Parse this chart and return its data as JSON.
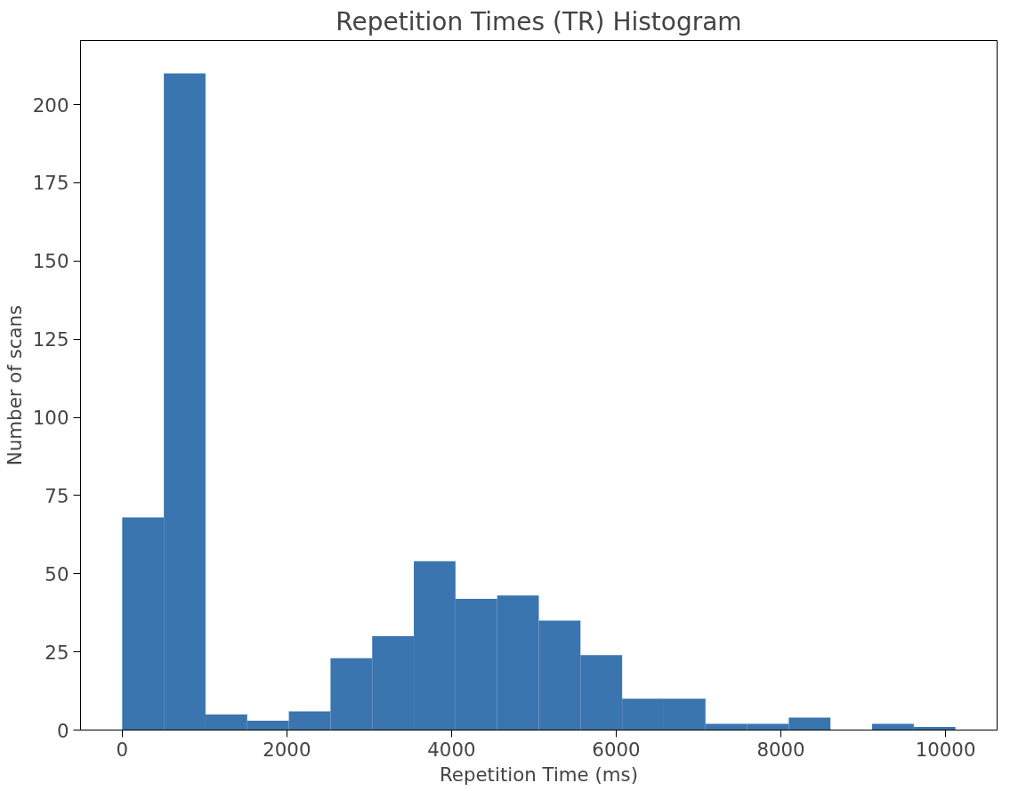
{
  "chart_data": {
    "type": "histogram",
    "title": "Repetition Times (TR) Histogram",
    "xlabel": "Repetition Time (ms)",
    "ylabel": "Number of scans",
    "bins": [
      0,
      506,
      1012,
      1518,
      2024,
      2530,
      3036,
      3542,
      4048,
      4554,
      5060,
      5566,
      6072,
      6578,
      7084,
      7590,
      8096,
      8602,
      9108,
      9614,
      10120
    ],
    "values": [
      68,
      210,
      5,
      3,
      6,
      23,
      30,
      54,
      42,
      43,
      35,
      24,
      10,
      10,
      2,
      2,
      4,
      0,
      2,
      1
    ],
    "color": "#3a75af",
    "xlim": [
      -506,
      10626
    ],
    "ylim": [
      0,
      220.5
    ],
    "xticks": [
      0,
      2000,
      4000,
      6000,
      8000,
      10000
    ],
    "yticks": [
      0,
      25,
      50,
      75,
      100,
      125,
      150,
      175,
      200
    ],
    "grid": false
  }
}
